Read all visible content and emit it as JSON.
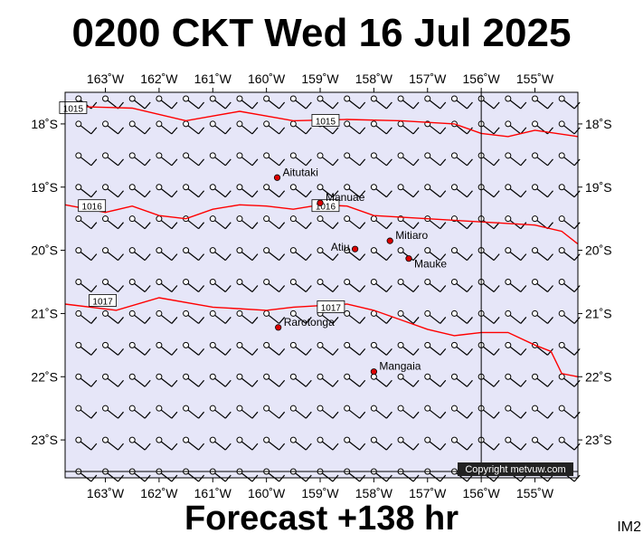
{
  "header": {
    "title": "0200 CKT Wed 16 Jul 2025"
  },
  "footer": {
    "forecast": "Forecast +138 hr",
    "image_tag": "IM2",
    "copyright": "Copyright metvuw.com"
  },
  "map": {
    "lon_range": [
      -163.75,
      -154.2
    ],
    "lat_range": [
      -23.6,
      -17.5
    ],
    "background_color": "#e6e6f8",
    "isobar_color": "#ff0000",
    "lon_ticks": [
      {
        "value": -163,
        "label": "163˚W"
      },
      {
        "value": -162,
        "label": "162˚W"
      },
      {
        "value": -161,
        "label": "161˚W"
      },
      {
        "value": -160,
        "label": "160˚W"
      },
      {
        "value": -159,
        "label": "159˚W"
      },
      {
        "value": -158,
        "label": "158˚W"
      },
      {
        "value": -157,
        "label": "157˚W"
      },
      {
        "value": -156,
        "label": "156˚W"
      },
      {
        "value": -155,
        "label": "155˚W"
      }
    ],
    "lat_ticks": [
      {
        "value": -18,
        "label": "18˚S"
      },
      {
        "value": -19,
        "label": "19˚S"
      },
      {
        "value": -20,
        "label": "20˚S"
      },
      {
        "value": -21,
        "label": "21˚S"
      },
      {
        "value": -22,
        "label": "22˚S"
      },
      {
        "value": -23,
        "label": "23˚S"
      }
    ],
    "reference_lines": {
      "lon": -156,
      "lat": -23.5
    },
    "places": [
      {
        "name": "Aitutaki",
        "lon": -159.8,
        "lat": -18.85,
        "label_side": "right"
      },
      {
        "name": "Manuae",
        "lon": -159.0,
        "lat": -19.25,
        "label_side": "right"
      },
      {
        "name": "Mitiaro",
        "lon": -157.7,
        "lat": -19.85,
        "label_side": "right"
      },
      {
        "name": "Atiu",
        "lon": -158.35,
        "lat": -19.98,
        "label_side": "left"
      },
      {
        "name": "Mauke",
        "lon": -157.35,
        "lat": -20.13,
        "label_side": "below-right"
      },
      {
        "name": "Rarotonga",
        "lon": -159.78,
        "lat": -21.22,
        "label_side": "right"
      },
      {
        "name": "Mangaia",
        "lon": -158.0,
        "lat": -21.92,
        "label_side": "right"
      }
    ],
    "isobars": [
      {
        "label": "1015",
        "label_lon": -163.6,
        "label_lat": -17.75,
        "label2_lon": -158.9,
        "label2_lat": -17.95,
        "points": [
          [
            -163.75,
            -17.72
          ],
          [
            -162.5,
            -17.75
          ],
          [
            -161.5,
            -17.95
          ],
          [
            -160.5,
            -17.8
          ],
          [
            -159.5,
            -17.95
          ],
          [
            -158.5,
            -17.93
          ],
          [
            -157.5,
            -17.95
          ],
          [
            -156.5,
            -18.0
          ],
          [
            -156.0,
            -18.15
          ],
          [
            -155.5,
            -18.2
          ],
          [
            -155.0,
            -18.1
          ],
          [
            -154.2,
            -18.2
          ]
        ]
      },
      {
        "label": "1016",
        "label_lon": -163.25,
        "label_lat": -19.3,
        "label2_lon": -158.9,
        "label2_lat": -19.3,
        "points": [
          [
            -163.75,
            -19.28
          ],
          [
            -163.0,
            -19.4
          ],
          [
            -162.5,
            -19.3
          ],
          [
            -162.0,
            -19.45
          ],
          [
            -161.5,
            -19.5
          ],
          [
            -161.0,
            -19.35
          ],
          [
            -160.5,
            -19.28
          ],
          [
            -160.0,
            -19.3
          ],
          [
            -159.5,
            -19.35
          ],
          [
            -159.0,
            -19.28
          ],
          [
            -158.5,
            -19.3
          ],
          [
            -158.0,
            -19.45
          ],
          [
            -157.0,
            -19.5
          ],
          [
            -156.0,
            -19.55
          ],
          [
            -155.0,
            -19.6
          ],
          [
            -154.5,
            -19.7
          ],
          [
            -154.2,
            -19.9
          ]
        ]
      },
      {
        "label": "1017",
        "label_lon": -163.05,
        "label_lat": -20.8,
        "label2_lon": -158.8,
        "label2_lat": -20.9,
        "points": [
          [
            -163.75,
            -20.85
          ],
          [
            -162.8,
            -20.95
          ],
          [
            -162.0,
            -20.75
          ],
          [
            -161.0,
            -20.9
          ],
          [
            -160.0,
            -20.95
          ],
          [
            -159.5,
            -20.9
          ],
          [
            -158.5,
            -20.85
          ],
          [
            -158.0,
            -20.95
          ],
          [
            -157.5,
            -21.1
          ],
          [
            -157.0,
            -21.25
          ],
          [
            -156.5,
            -21.35
          ],
          [
            -156.0,
            -21.3
          ],
          [
            -155.5,
            -21.3
          ],
          [
            -155.0,
            -21.5
          ],
          [
            -154.7,
            -21.6
          ],
          [
            -154.5,
            -21.95
          ],
          [
            -154.2,
            -22.0
          ]
        ]
      }
    ],
    "wind_field": {
      "lons": [
        -163.5,
        -163.0,
        -162.5,
        -162.0,
        -161.5,
        -161.0,
        -160.5,
        -160.0,
        -159.5,
        -159.0,
        -158.5,
        -158.0,
        -157.5,
        -157.0,
        -156.5,
        -156.0,
        -155.5,
        -155.0,
        -154.5
      ],
      "lats": [
        -17.6,
        -18.0,
        -18.5,
        -19.0,
        -19.5,
        -20.0,
        -20.5,
        -21.0,
        -21.5,
        -22.0,
        -22.5,
        -23.0,
        -23.5
      ],
      "barb_count": 1
    }
  }
}
